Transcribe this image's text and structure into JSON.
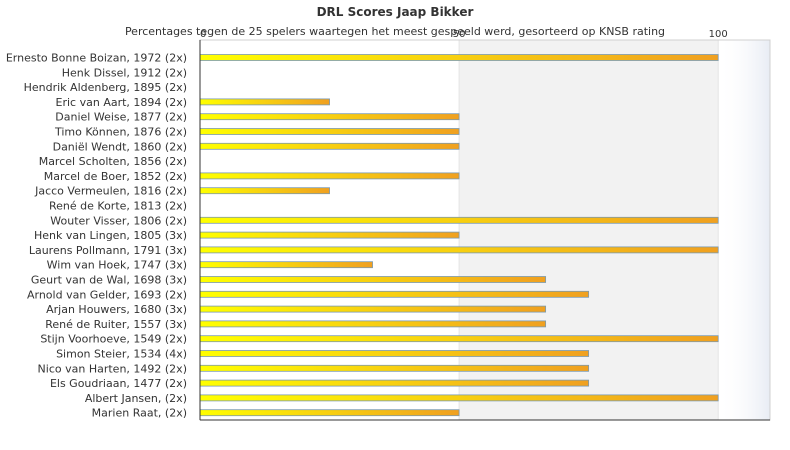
{
  "chart_data": {
    "type": "bar",
    "orientation": "horizontal",
    "title": "DRL Scores Jaap Bikker",
    "subtitle": "Percentages tegen de 25 spelers waartegen het meest gespeeld werd, gesorteerd op KNSB rating",
    "xlim": [
      0,
      110
    ],
    "xticks": [
      0,
      50,
      100
    ],
    "grid": true,
    "legend": "none",
    "categories": [
      "Ernesto Bonne Boizan, 1972 (2x)",
      "Henk Dissel, 1912 (2x)",
      "Hendrik Aldenberg, 1895 (2x)",
      "Eric van Aart, 1894 (2x)",
      "Daniel Weise, 1877 (2x)",
      "Timo Können, 1876 (2x)",
      "Daniël Wendt, 1860 (2x)",
      "Marcel Scholten, 1856 (2x)",
      "Marcel de Boer, 1852 (2x)",
      "Jacco Vermeulen, 1816 (2x)",
      "René de Korte, 1813 (2x)",
      "Wouter Visser, 1806 (2x)",
      "Henk van Lingen, 1805 (3x)",
      "Laurens Pollmann, 1791 (3x)",
      "Wim van Hoek, 1747 (3x)",
      "Geurt van de Wal, 1698 (3x)",
      "Arnold van Gelder, 1693 (2x)",
      "Arjan Houwers, 1680 (3x)",
      "René de Ruiter, 1557 (3x)",
      "Stijn Voorhoeve, 1549 (2x)",
      "Simon Steier, 1534 (4x)",
      "Nico van Harten, 1492 (2x)",
      "Els Goudriaan, 1477 (2x)",
      "Albert Jansen,  (2x)",
      "Marien Raat,  (2x)"
    ],
    "values": [
      100,
      0,
      0,
      25,
      50,
      50,
      50,
      0,
      50,
      25,
      0,
      100,
      50,
      100,
      33.3,
      66.7,
      75,
      66.7,
      66.7,
      100,
      75,
      75,
      75,
      100,
      50
    ],
    "colors": {
      "bar_left": "#ffff00",
      "bar_right": "#f0a020",
      "bar_stroke": "#7a9ab0",
      "band": "#f2f2f2",
      "axis": "#333333"
    }
  }
}
